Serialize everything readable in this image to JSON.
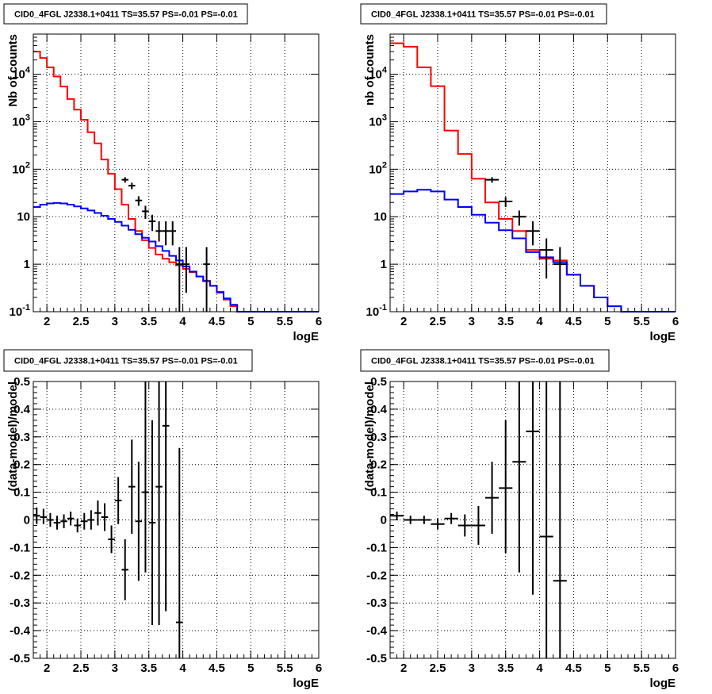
{
  "colors": {
    "data": "#000000",
    "total_model": "#ff0000",
    "component_model": "#0000ff",
    "grid": "#000000"
  },
  "chart_data": [
    {
      "id": "top-left",
      "type": "line",
      "title": "CID0_4FGL J2338.1+0411 TS=35.57 PS=-0.01 PS=-0.01",
      "xlabel": "logE",
      "ylabel": "Nb of counts",
      "yscale": "log",
      "xlim": [
        1.8,
        6.0
      ],
      "ylim": [
        0.1,
        70000
      ],
      "grid": true,
      "xticks": [
        "2",
        "2.5",
        "3",
        "3.5",
        "4",
        "4.5",
        "5",
        "5.5",
        "6"
      ],
      "yticks": [
        "10^-1",
        "1",
        "10",
        "10^2",
        "10^3",
        "10^4"
      ],
      "bin_edges": [
        1.8,
        1.9,
        2.0,
        2.1,
        2.2,
        2.3,
        2.4,
        2.5,
        2.6,
        2.7,
        2.8,
        2.9,
        3.0,
        3.1,
        3.2,
        3.3,
        3.4,
        3.5,
        3.6,
        3.7,
        3.8,
        3.9,
        4.0,
        4.1,
        4.2,
        4.3,
        4.4,
        4.5,
        4.6,
        4.7,
        4.8,
        4.9,
        5.0,
        5.1,
        5.2,
        5.3,
        5.4,
        5.5,
        5.6,
        5.7,
        5.8,
        5.9,
        6.0
      ],
      "series": [
        {
          "role": "total_model",
          "values": [
            30000,
            22000,
            14000,
            9000,
            5500,
            3000,
            1800,
            1100,
            600,
            350,
            160,
            80,
            38,
            18,
            9,
            5,
            3.2,
            2.2,
            1.6,
            1.3,
            1.1,
            0.95,
            0.8,
            0.68,
            0.55,
            0.45,
            0.35,
            0.25,
            0.18,
            0.13,
            0.1,
            0.1,
            0.1,
            0.1,
            0.1,
            0.1,
            0.1,
            0.1,
            0.1,
            0.1,
            0.1,
            0.1
          ]
        },
        {
          "role": "component_model",
          "values": [
            16,
            18,
            19,
            19.5,
            19,
            18,
            16.5,
            15,
            13.5,
            12,
            10.5,
            9,
            7.8,
            6.5,
            5.3,
            4.3,
            3.6,
            3.0,
            2.4,
            1.9,
            1.5,
            1.2,
            0.9,
            0.7,
            0.55,
            0.44,
            0.35,
            0.26,
            0.19,
            0.14,
            0.1,
            0.1,
            0.1,
            0.1,
            0.1,
            0.1,
            0.1,
            0.1,
            0.1,
            0.1,
            0.1,
            0.1
          ]
        }
      ],
      "points": [
        {
          "x": 3.15,
          "y": 60,
          "lo": 52,
          "hi": 68,
          "dx": 0.05
        },
        {
          "x": 3.25,
          "y": 45,
          "lo": 38,
          "hi": 52,
          "dx": 0.05
        },
        {
          "x": 3.35,
          "y": 22,
          "lo": 17,
          "hi": 27,
          "dx": 0.05
        },
        {
          "x": 3.45,
          "y": 13,
          "lo": 9,
          "hi": 17,
          "dx": 0.05
        },
        {
          "x": 3.55,
          "y": 8,
          "lo": 5,
          "hi": 11,
          "dx": 0.05
        },
        {
          "x": 3.65,
          "y": 5,
          "lo": 3,
          "hi": 8,
          "dx": 0.05
        },
        {
          "x": 3.75,
          "y": 5,
          "lo": 2.5,
          "hi": 8,
          "dx": 0.05
        },
        {
          "x": 3.85,
          "y": 5,
          "lo": 2.5,
          "hi": 8,
          "dx": 0.05
        },
        {
          "x": 3.95,
          "y": 1,
          "lo": 0.1,
          "hi": 2.3,
          "dx": 0.05
        },
        {
          "x": 4.05,
          "y": 1,
          "lo": 0.25,
          "hi": 2.3,
          "dx": 0.05
        },
        {
          "x": 4.35,
          "y": 1,
          "lo": 0.1,
          "hi": 2.3,
          "dx": 0.05
        }
      ]
    },
    {
      "id": "top-right",
      "type": "line",
      "title": "CID0_4FGL J2338.1+0411 TS=35.57 PS=-0.01 PS=-0.01",
      "xlabel": "logE",
      "ylabel": "nb of counts",
      "yscale": "log",
      "xlim": [
        1.8,
        6.0
      ],
      "ylim": [
        0.1,
        70000
      ],
      "grid": true,
      "xticks": [
        "2",
        "2.5",
        "3",
        "3.5",
        "4",
        "4.5",
        "5",
        "5.5",
        "6"
      ],
      "yticks": [
        "10^-1",
        "1",
        "10",
        "10^2",
        "10^3",
        "10^4"
      ],
      "bin_edges": [
        1.8,
        2.0,
        2.2,
        2.4,
        2.6,
        2.8,
        3.0,
        3.2,
        3.4,
        3.6,
        3.8,
        4.0,
        4.2,
        4.4,
        4.6,
        4.8,
        5.0,
        5.2,
        5.4,
        5.6,
        5.8,
        6.0
      ],
      "series": [
        {
          "role": "total_model",
          "values": [
            45000,
            38000,
            14000,
            5600,
            650,
            210,
            63,
            20,
            9,
            5,
            2,
            1.3,
            1.2,
            0.6,
            0.35,
            0.2,
            0.13,
            0.1,
            0.1,
            0.1,
            0.1
          ]
        },
        {
          "role": "component_model",
          "values": [
            30,
            34,
            37,
            34,
            23,
            16,
            11,
            7.5,
            5.2,
            3.5,
            1.8,
            1.4,
            1.1,
            0.6,
            0.35,
            0.2,
            0.13,
            0.1,
            0.1,
            0.1,
            0.1
          ]
        }
      ],
      "points": [
        {
          "x": 3.3,
          "y": 60,
          "lo": 52,
          "hi": 68,
          "dx": 0.1
        },
        {
          "x": 3.5,
          "y": 21,
          "lo": 16,
          "hi": 26,
          "dx": 0.1
        },
        {
          "x": 3.7,
          "y": 10,
          "lo": 6.5,
          "hi": 13.5,
          "dx": 0.1
        },
        {
          "x": 3.9,
          "y": 5,
          "lo": 2.5,
          "hi": 8,
          "dx": 0.1
        },
        {
          "x": 4.1,
          "y": 2,
          "lo": 0.5,
          "hi": 3.5,
          "dx": 0.1
        },
        {
          "x": 4.3,
          "y": 1,
          "lo": 0.1,
          "hi": 2.3,
          "dx": 0.1
        }
      ]
    },
    {
      "id": "bottom-left",
      "type": "scatter",
      "title": "CID0_4FGL J2338.1+0411 TS=35.57 PS=-0.01 PS=-0.01",
      "xlabel": "logE",
      "ylabel": "(data-model)/model",
      "xlim": [
        1.8,
        6.0
      ],
      "ylim": [
        -0.5,
        0.5
      ],
      "grid": true,
      "xticks": [
        "2",
        "2.5",
        "3",
        "3.5",
        "4",
        "4.5",
        "5",
        "5.5",
        "6"
      ],
      "yticks": [
        "-0.5",
        "-0.4",
        "-0.3",
        "-0.2",
        "-0.1",
        "0",
        "0.1",
        "0.2",
        "0.3",
        "0.4",
        "0.5"
      ],
      "points": [
        {
          "x": 1.85,
          "y": 0.015,
          "lo": -0.015,
          "hi": 0.045,
          "dx": 0.05
        },
        {
          "x": 1.95,
          "y": 0.01,
          "lo": -0.015,
          "hi": 0.04,
          "dx": 0.05
        },
        {
          "x": 2.05,
          "y": 0.0,
          "lo": -0.025,
          "hi": 0.025,
          "dx": 0.05
        },
        {
          "x": 2.15,
          "y": -0.01,
          "lo": -0.035,
          "hi": 0.015,
          "dx": 0.05
        },
        {
          "x": 2.25,
          "y": -0.005,
          "lo": -0.03,
          "hi": 0.02,
          "dx": 0.05
        },
        {
          "x": 2.35,
          "y": 0.005,
          "lo": -0.02,
          "hi": 0.03,
          "dx": 0.05
        },
        {
          "x": 2.45,
          "y": -0.02,
          "lo": -0.045,
          "hi": 0.005,
          "dx": 0.05
        },
        {
          "x": 2.55,
          "y": -0.005,
          "lo": -0.035,
          "hi": 0.025,
          "dx": 0.05
        },
        {
          "x": 2.65,
          "y": 0.0,
          "lo": -0.035,
          "hi": 0.035,
          "dx": 0.05
        },
        {
          "x": 2.75,
          "y": 0.025,
          "lo": -0.02,
          "hi": 0.07,
          "dx": 0.05
        },
        {
          "x": 2.85,
          "y": 0.01,
          "lo": -0.04,
          "hi": 0.06,
          "dx": 0.05
        },
        {
          "x": 2.95,
          "y": -0.07,
          "lo": -0.12,
          "hi": -0.02,
          "dx": 0.05
        },
        {
          "x": 3.05,
          "y": 0.07,
          "lo": -0.015,
          "hi": 0.155,
          "dx": 0.05
        },
        {
          "x": 3.15,
          "y": -0.18,
          "lo": -0.29,
          "hi": -0.07,
          "dx": 0.05
        },
        {
          "x": 3.25,
          "y": 0.12,
          "lo": -0.05,
          "hi": 0.29,
          "dx": 0.05
        },
        {
          "x": 3.35,
          "y": -0.005,
          "lo": -0.22,
          "hi": 0.21,
          "dx": 0.05
        },
        {
          "x": 3.45,
          "y": 0.1,
          "lo": -0.19,
          "hi": 0.5,
          "dx": 0.05
        },
        {
          "x": 3.55,
          "y": -0.01,
          "lo": -0.38,
          "hi": 0.36,
          "dx": 0.05
        },
        {
          "x": 3.65,
          "y": 0.12,
          "lo": -0.38,
          "hi": 0.5,
          "dx": 0.05
        },
        {
          "x": 3.75,
          "y": 0.34,
          "lo": -0.33,
          "hi": 0.5,
          "dx": 0.05
        },
        {
          "x": 3.95,
          "y": -0.37,
          "lo": -0.5,
          "hi": 0.26,
          "dx": 0.05
        }
      ]
    },
    {
      "id": "bottom-right",
      "type": "scatter",
      "title": "CID0_4FGL J2338.1+0411 TS=35.57 PS=-0.01 PS=-0.01",
      "xlabel": "logE",
      "ylabel": "(data-model)/model",
      "xlim": [
        1.8,
        6.0
      ],
      "ylim": [
        -0.5,
        0.5
      ],
      "grid": true,
      "xticks": [
        "2",
        "2.5",
        "3",
        "3.5",
        "4",
        "4.5",
        "5",
        "5.5",
        "6"
      ],
      "yticks": [
        "-0.5",
        "-0.4",
        "-0.3",
        "-0.2",
        "-0.1",
        "0",
        "0.1",
        "0.2",
        "0.3",
        "0.4",
        "0.5"
      ],
      "points": [
        {
          "x": 1.9,
          "y": 0.015,
          "lo": 0.0,
          "hi": 0.03,
          "dx": 0.1
        },
        {
          "x": 2.1,
          "y": 0.0,
          "lo": -0.015,
          "hi": 0.015,
          "dx": 0.1
        },
        {
          "x": 2.3,
          "y": 0.0,
          "lo": -0.015,
          "hi": 0.015,
          "dx": 0.1
        },
        {
          "x": 2.5,
          "y": -0.015,
          "lo": -0.035,
          "hi": 0.005,
          "dx": 0.1
        },
        {
          "x": 2.7,
          "y": 0.005,
          "lo": -0.015,
          "hi": 0.025,
          "dx": 0.1
        },
        {
          "x": 2.9,
          "y": -0.02,
          "lo": -0.06,
          "hi": 0.02,
          "dx": 0.1
        },
        {
          "x": 3.1,
          "y": -0.02,
          "lo": -0.09,
          "hi": 0.05,
          "dx": 0.1
        },
        {
          "x": 3.3,
          "y": 0.08,
          "lo": -0.05,
          "hi": 0.21,
          "dx": 0.1
        },
        {
          "x": 3.5,
          "y": 0.115,
          "lo": -0.12,
          "hi": 0.36,
          "dx": 0.1
        },
        {
          "x": 3.7,
          "y": 0.21,
          "lo": -0.19,
          "hi": 0.5,
          "dx": 0.1
        },
        {
          "x": 3.9,
          "y": 0.32,
          "lo": -0.27,
          "hi": 0.5,
          "dx": 0.1
        },
        {
          "x": 4.1,
          "y": -0.06,
          "lo": -0.5,
          "hi": 0.5,
          "dx": 0.1
        },
        {
          "x": 4.3,
          "y": -0.22,
          "lo": -0.5,
          "hi": 0.5,
          "dx": 0.1
        }
      ]
    }
  ]
}
